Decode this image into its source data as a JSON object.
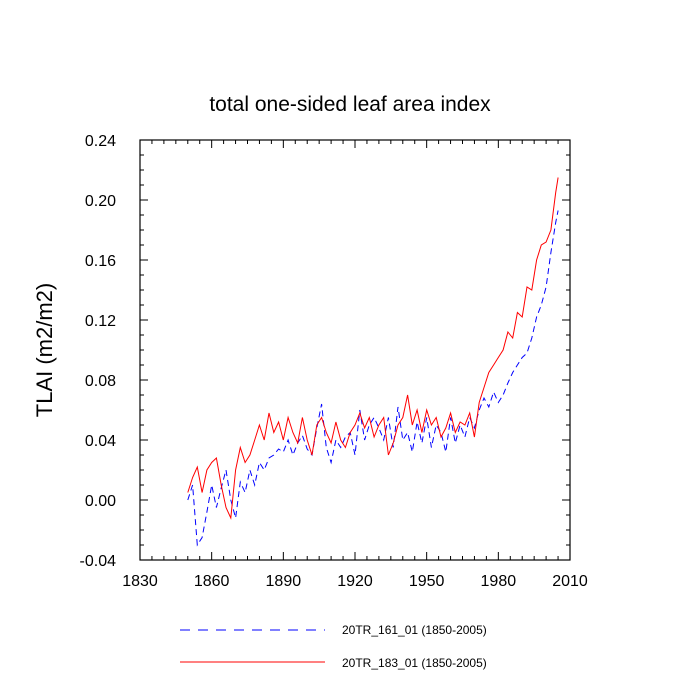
{
  "chart_data": {
    "type": "line",
    "title": "total one-sided leaf area index",
    "xlabel": "",
    "ylabel": "TLAI  (m2/m2)",
    "xlim": [
      1830,
      2010
    ],
    "ylim": [
      -0.04,
      0.24
    ],
    "x_ticks": [
      1830,
      1860,
      1890,
      1920,
      1950,
      1980,
      2010
    ],
    "y_ticks": [
      -0.04,
      0.0,
      0.04,
      0.08,
      0.12,
      0.16,
      0.2,
      0.24
    ],
    "x_tick_labels": [
      "1830",
      "1860",
      "1890",
      "1920",
      "1950",
      "1980",
      "2010"
    ],
    "y_tick_labels": [
      "-0.04",
      "0.00",
      "0.04",
      "0.08",
      "0.12",
      "0.16",
      "0.20",
      "0.24"
    ],
    "grid": false,
    "legend_position": "bottom",
    "series": [
      {
        "name": "20TR_161_01 (1850-2005)",
        "color": "#0000ff",
        "style": "dashed",
        "x": [
          1850,
          1852,
          1854,
          1856,
          1858,
          1860,
          1862,
          1864,
          1866,
          1868,
          1870,
          1872,
          1874,
          1876,
          1878,
          1880,
          1882,
          1884,
          1886,
          1888,
          1890,
          1892,
          1894,
          1896,
          1898,
          1900,
          1902,
          1904,
          1906,
          1908,
          1910,
          1912,
          1914,
          1916,
          1918,
          1920,
          1922,
          1924,
          1926,
          1928,
          1930,
          1932,
          1934,
          1936,
          1938,
          1940,
          1942,
          1944,
          1946,
          1948,
          1950,
          1952,
          1954,
          1956,
          1958,
          1960,
          1962,
          1964,
          1966,
          1968,
          1970,
          1972,
          1974,
          1976,
          1978,
          1980,
          1982,
          1984,
          1986,
          1988,
          1990,
          1992,
          1994,
          1996,
          1998,
          2000,
          2002,
          2004,
          2005
        ],
        "y": [
          0.0,
          0.01,
          -0.03,
          -0.025,
          -0.008,
          0.01,
          -0.005,
          0.008,
          0.02,
          0.0,
          -0.012,
          0.012,
          0.005,
          0.02,
          0.01,
          0.025,
          0.02,
          0.028,
          0.03,
          0.034,
          0.032,
          0.04,
          0.03,
          0.038,
          0.043,
          0.034,
          0.03,
          0.048,
          0.064,
          0.035,
          0.025,
          0.04,
          0.035,
          0.042,
          0.045,
          0.03,
          0.06,
          0.04,
          0.05,
          0.055,
          0.048,
          0.04,
          0.055,
          0.035,
          0.062,
          0.04,
          0.045,
          0.032,
          0.052,
          0.038,
          0.055,
          0.035,
          0.05,
          0.045,
          0.032,
          0.055,
          0.038,
          0.05,
          0.042,
          0.055,
          0.048,
          0.06,
          0.068,
          0.062,
          0.072,
          0.065,
          0.07,
          0.078,
          0.085,
          0.09,
          0.095,
          0.098,
          0.108,
          0.122,
          0.13,
          0.142,
          0.165,
          0.185,
          0.193
        ]
      },
      {
        "name": "20TR_183_01 (1850-2005)",
        "color": "#ff0000",
        "style": "solid",
        "x": [
          1850,
          1852,
          1854,
          1856,
          1858,
          1860,
          1862,
          1864,
          1866,
          1868,
          1870,
          1872,
          1874,
          1876,
          1878,
          1880,
          1882,
          1884,
          1886,
          1888,
          1890,
          1892,
          1894,
          1896,
          1898,
          1900,
          1902,
          1904,
          1906,
          1908,
          1910,
          1912,
          1914,
          1916,
          1918,
          1920,
          1922,
          1924,
          1926,
          1928,
          1930,
          1932,
          1934,
          1936,
          1938,
          1940,
          1942,
          1944,
          1946,
          1948,
          1950,
          1952,
          1954,
          1956,
          1958,
          1960,
          1962,
          1964,
          1966,
          1968,
          1970,
          1972,
          1974,
          1976,
          1978,
          1980,
          1982,
          1984,
          1986,
          1988,
          1990,
          1992,
          1994,
          1996,
          1998,
          2000,
          2002,
          2004,
          2005
        ],
        "y": [
          0.005,
          0.015,
          0.022,
          0.005,
          0.02,
          0.025,
          0.028,
          0.01,
          -0.005,
          -0.012,
          0.02,
          0.035,
          0.025,
          0.03,
          0.04,
          0.05,
          0.04,
          0.058,
          0.045,
          0.052,
          0.04,
          0.055,
          0.045,
          0.038,
          0.055,
          0.04,
          0.03,
          0.05,
          0.055,
          0.045,
          0.038,
          0.052,
          0.04,
          0.035,
          0.045,
          0.05,
          0.058,
          0.048,
          0.055,
          0.042,
          0.05,
          0.055,
          0.03,
          0.038,
          0.05,
          0.055,
          0.07,
          0.05,
          0.06,
          0.045,
          0.06,
          0.05,
          0.055,
          0.042,
          0.048,
          0.058,
          0.045,
          0.052,
          0.05,
          0.058,
          0.042,
          0.065,
          0.075,
          0.085,
          0.09,
          0.095,
          0.1,
          0.112,
          0.108,
          0.125,
          0.122,
          0.142,
          0.14,
          0.16,
          0.17,
          0.172,
          0.18,
          0.205,
          0.215
        ]
      }
    ]
  }
}
